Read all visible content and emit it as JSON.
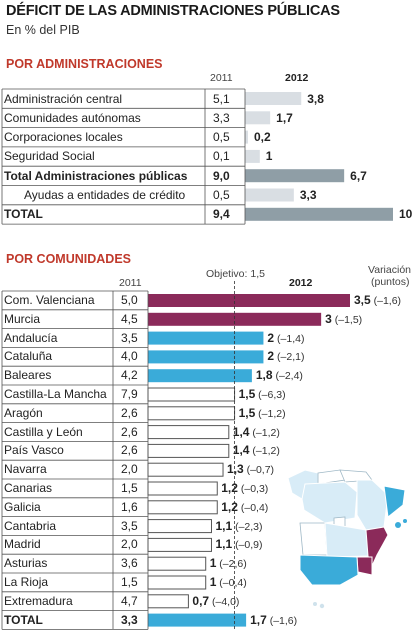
{
  "title": "DÉFICIT DE LAS ADMINISTRACIONES PÚBLICAS",
  "subtitle": "En % del PIB",
  "colors": {
    "accent": "#c0392b",
    "grey_bar": "#d9dee3",
    "grey_total": "#8f9ea6",
    "purple": "#8b2a5a",
    "blue": "#3aabd9",
    "white_bar": "#ffffff"
  },
  "chart_data": [
    {
      "type": "bar",
      "section_title": "POR ADMINISTRACIONES",
      "col_2011": "2011",
      "col_2012": "2012",
      "max": 10,
      "rows": [
        {
          "label": "Administración central",
          "v2011": "5,1",
          "v2012": 3.8,
          "label2012": "3,8",
          "style": "grey"
        },
        {
          "label": "Comunidades autónomas",
          "v2011": "3,3",
          "v2012": 1.7,
          "label2012": "1,7",
          "style": "grey"
        },
        {
          "label": "Corporaciones locales",
          "v2011": "0,5",
          "v2012": 0.2,
          "label2012": "0,2",
          "style": "grey"
        },
        {
          "label": "Seguridad Social",
          "v2011": "0,1",
          "v2012": 1,
          "label2012": "1",
          "style": "grey"
        },
        {
          "label": "Total Administraciones públicas",
          "v2011": "9,0",
          "v2012": 6.7,
          "label2012": "6,7",
          "style": "total"
        },
        {
          "label": "Ayudas a entidades de crédito",
          "v2011": "0,5",
          "v2012": 3.3,
          "label2012": "3,3",
          "style": "grey",
          "indent": true
        },
        {
          "label": "TOTAL",
          "v2011": "9,4",
          "v2012": 10,
          "label2012": "10",
          "style": "total"
        }
      ]
    },
    {
      "type": "bar",
      "section_title": "POR COMUNIDADES",
      "col_2011": "2011",
      "col_2012": "2012",
      "objective_label": "Objetivo: 1,5",
      "objective": 1.5,
      "variation_label": "Variación",
      "variation_unit": "(puntos)",
      "max": 3.5,
      "rows": [
        {
          "label": "Com. Valenciana",
          "v2011": "5,0",
          "v2012": 3.5,
          "label2012": "3,5",
          "var": "(–1,6)",
          "style": "purple"
        },
        {
          "label": "Murcia",
          "v2011": "4,5",
          "v2012": 3,
          "label2012": "3",
          "var": "(–1,5)",
          "style": "purple"
        },
        {
          "label": "Andalucía",
          "v2011": "3,5",
          "v2012": 2,
          "label2012": "2",
          "var": "(–1,4)",
          "style": "blue"
        },
        {
          "label": "Cataluña",
          "v2011": "4,0",
          "v2012": 2,
          "label2012": "2",
          "var": "(–2,1)",
          "style": "blue"
        },
        {
          "label": "Baleares",
          "v2011": "4,2",
          "v2012": 1.8,
          "label2012": "1,8",
          "var": "(–2,4)",
          "style": "blue"
        },
        {
          "label": "Castilla-La Mancha",
          "v2011": "7,9",
          "v2012": 1.5,
          "label2012": "1,5",
          "var": "(–6,3)",
          "style": "white"
        },
        {
          "label": "Aragón",
          "v2011": "2,6",
          "v2012": 1.5,
          "label2012": "1,5",
          "var": "(–1,2)",
          "style": "white"
        },
        {
          "label": "Castilla y León",
          "v2011": "2,6",
          "v2012": 1.4,
          "label2012": "1,4",
          "var": "(–1,2)",
          "style": "white"
        },
        {
          "label": "País Vasco",
          "v2011": "2,6",
          "v2012": 1.4,
          "label2012": "1,4",
          "var": "(–1,2)",
          "style": "white"
        },
        {
          "label": "Navarra",
          "v2011": "2,0",
          "v2012": 1.3,
          "label2012": "1,3",
          "var": "(–0,7)",
          "style": "white"
        },
        {
          "label": "Canarias",
          "v2011": "1,5",
          "v2012": 1.2,
          "label2012": "1,2",
          "var": "(–0,3)",
          "style": "white"
        },
        {
          "label": "Galicia",
          "v2011": "1,6",
          "v2012": 1.2,
          "label2012": "1,2",
          "var": "(–0,4)",
          "style": "white"
        },
        {
          "label": "Cantabria",
          "v2011": "3,5",
          "v2012": 1.1,
          "label2012": "1,1",
          "var": "(–2,3)",
          "style": "white"
        },
        {
          "label": "Madrid",
          "v2011": "2,0",
          "v2012": 1.1,
          "label2012": "1,1",
          "var": "(–0,9)",
          "style": "white"
        },
        {
          "label": "Asturias",
          "v2011": "3,6",
          "v2012": 1,
          "label2012": "1",
          "var": "(–2,6)",
          "style": "white"
        },
        {
          "label": "La Rioja",
          "v2011": "1,5",
          "v2012": 1,
          "label2012": "1",
          "var": "(–0,4)",
          "style": "white"
        },
        {
          "label": "Extremadura",
          "v2011": "4,7",
          "v2012": 0.7,
          "label2012": "0,7",
          "var": "(–4,0)",
          "style": "white"
        },
        {
          "label": "TOTAL",
          "v2011": "3,3",
          "v2012": 1.7,
          "label2012": "1,7",
          "var": "(–1,6)",
          "style": "blue",
          "total": true
        }
      ]
    }
  ]
}
